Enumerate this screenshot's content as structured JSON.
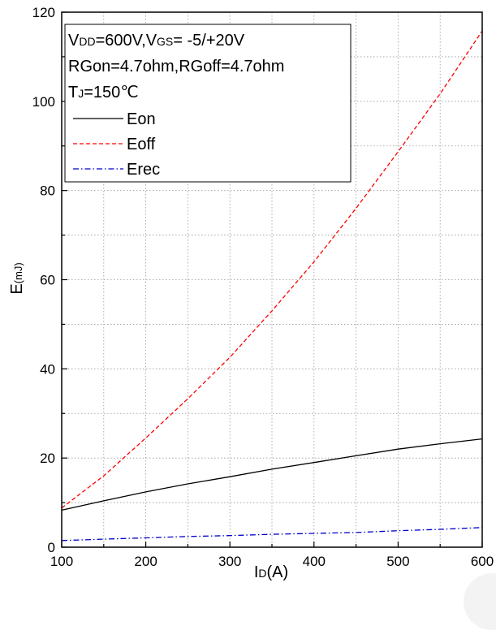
{
  "chart_data": {
    "type": "line",
    "xlabel_main": "I",
    "xlabel_sub": "D",
    "xlabel_unit": "(A)",
    "ylabel_main": "E",
    "ylabel_unit": "(mJ)",
    "xlim": [
      100,
      600
    ],
    "ylim": [
      0,
      120
    ],
    "x_ticks": [
      100,
      200,
      300,
      400,
      500,
      600
    ],
    "y_ticks": [
      0,
      20,
      40,
      60,
      80,
      100,
      120
    ],
    "grid": true,
    "legend_position": "top-left",
    "conditions": {
      "line1_main1": "V",
      "line1_sub1": "DD",
      "line1_main2": "=600V,V",
      "line1_sub2": "GS",
      "line1_main3": "= -5/+20V",
      "line2": "RGon=4.7ohm,RGoff=4.7ohm",
      "line3_main": "T",
      "line3_sub": "J",
      "line3_rest": "=150℃"
    },
    "series": [
      {
        "name": "Eon",
        "color": "#000000",
        "dash": "solid",
        "x": [
          100,
          150,
          200,
          250,
          300,
          350,
          400,
          450,
          500,
          550,
          600
        ],
        "y": [
          8.3,
          10.4,
          12.4,
          14.2,
          15.8,
          17.5,
          19.0,
          20.5,
          22.0,
          23.2,
          24.3
        ]
      },
      {
        "name": "Eoff",
        "color": "#ff0000",
        "dash": "dashed",
        "x": [
          100,
          150,
          200,
          250,
          300,
          350,
          400,
          450,
          500,
          550,
          600
        ],
        "y": [
          8.8,
          16.0,
          24.5,
          33.3,
          42.6,
          53.0,
          64.0,
          76.0,
          88.7,
          101.7,
          115.8
        ]
      },
      {
        "name": "Erec",
        "color": "#0000cc",
        "dash": "dashdot",
        "x": [
          100,
          150,
          200,
          250,
          300,
          350,
          400,
          450,
          500,
          550,
          600
        ],
        "y": [
          1.5,
          1.8,
          2.1,
          2.4,
          2.6,
          2.9,
          3.1,
          3.3,
          3.7,
          4.0,
          4.4
        ]
      }
    ]
  }
}
